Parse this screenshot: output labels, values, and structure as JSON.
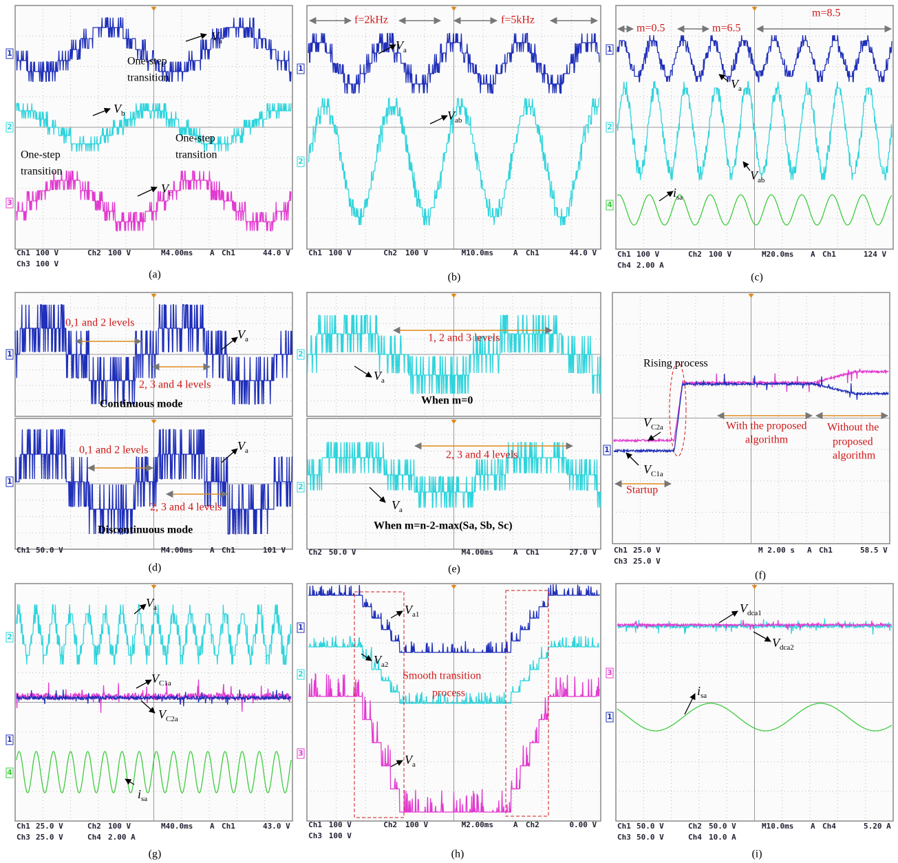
{
  "panels": [
    {
      "caption": "(a)",
      "channels": [
        "1",
        "2",
        "3"
      ],
      "labels": [
        {
          "text": "V",
          "sub": "a"
        },
        "One-step",
        "transition",
        {
          "text": "V",
          "sub": "b"
        },
        "One-step",
        "transition",
        "One-step",
        "transition",
        {
          "text": "V",
          "sub": "c"
        }
      ],
      "status": [
        [
          "Ch1",
          "100 V",
          "Ch2",
          "100 V",
          "M4.00ms",
          "A",
          "Ch1",
          "44.0 V"
        ],
        [
          "Ch3",
          "100 V"
        ]
      ]
    },
    {
      "caption": "(b)",
      "channels": [
        "1",
        "2"
      ],
      "labels": [
        "f=2kHz",
        "f=5kHz",
        {
          "text": "V",
          "sub": "a"
        },
        {
          "text": "V",
          "sub": "ab"
        }
      ],
      "status": [
        [
          "Ch1",
          "100 V",
          "Ch2",
          "100 V",
          "M10.0ms",
          "A",
          "Ch1",
          "44.0 V"
        ]
      ]
    },
    {
      "caption": "(c)",
      "channels": [
        "1",
        "2",
        "4"
      ],
      "labels": [
        "m=0.5",
        "m=6.5",
        "m=8.5",
        {
          "text": "V",
          "sub": "a"
        },
        {
          "text": "V",
          "sub": "ab"
        },
        {
          "text": "i",
          "sub": "sa"
        }
      ],
      "status": [
        [
          "Ch1",
          "100 V",
          "Ch2",
          "100 V",
          "M20.0ms",
          "A",
          "Ch1",
          "124 V"
        ],
        [
          "Ch4",
          "2.00 A"
        ]
      ]
    },
    {
      "caption": "(d)",
      "channels": [
        "1",
        "1"
      ],
      "labels": [
        "0,1 and 2 levels",
        {
          "text": "V",
          "sub": "a"
        },
        "2, 3 and 4 levels",
        "Continuous mode",
        "0,1 and 2 levels",
        {
          "text": "V",
          "sub": "a"
        },
        "2, 3 and 4 levels",
        "Discontinuous mode"
      ],
      "status": [
        [
          "Ch1",
          "50.0 V",
          "M4.00ms",
          "A",
          "Ch1",
          "101 V"
        ]
      ]
    },
    {
      "caption": "(e)",
      "channels": [
        "2",
        "2"
      ],
      "labels": [
        "1, 2 and 3 levels",
        {
          "text": "V",
          "sub": "a"
        },
        "When m=0",
        "2, 3 and 4 levels",
        {
          "text": "V",
          "sub": "a"
        },
        "When m=n-2-max(Sa, Sb, Sc)"
      ],
      "status": [
        [
          "Ch2",
          "50.0 V",
          "M4.00ms",
          "A",
          "Ch1",
          "27.0 V"
        ]
      ]
    },
    {
      "caption": "(f)",
      "channels": [
        "1"
      ],
      "labels": [
        "Rising process",
        {
          "text": "V",
          "sub": "C2a"
        },
        {
          "text": "V",
          "sub": "C1a"
        },
        "Startup",
        "With the proposed",
        "algorithm",
        "Without the",
        "proposed",
        "algorithm"
      ],
      "status": [
        [
          "Ch1",
          "25.0 V",
          "M 2.00 s",
          "A",
          "Ch1",
          "58.5 V"
        ],
        [
          "Ch3",
          "25.0 V"
        ]
      ]
    },
    {
      "caption": "(g)",
      "channels": [
        "2",
        "1",
        "4"
      ],
      "labels": [
        {
          "text": "V",
          "sub": "a"
        },
        {
          "text": "V",
          "sub": "C1a"
        },
        {
          "text": "V",
          "sub": "C2a"
        },
        {
          "text": "i",
          "sub": "sa"
        }
      ],
      "status": [
        [
          "Ch1",
          "25.0 V",
          "Ch2",
          "100 V",
          "M40.0ms",
          "A",
          "Ch1",
          "43.0 V"
        ],
        [
          "Ch3",
          "25.0 V",
          "Ch4",
          "2.00 A"
        ]
      ]
    },
    {
      "caption": "(h)",
      "channels": [
        "1",
        "2",
        "3"
      ],
      "labels": [
        {
          "text": "V",
          "sub": "a1"
        },
        {
          "text": "V",
          "sub": "a2"
        },
        "Smooth transition",
        "process",
        {
          "text": "V",
          "sub": "a"
        }
      ],
      "status": [
        [
          "Ch1",
          "100 V",
          "Ch2",
          "100 V",
          "M2.00ms",
          "A",
          "Ch2",
          "0.00 V"
        ],
        [
          "Ch3",
          "100 V"
        ]
      ]
    },
    {
      "caption": "(i)",
      "channels": [
        "3",
        "1"
      ],
      "labels": [
        {
          "text": "V",
          "sub": "dca1"
        },
        {
          "text": "V",
          "sub": "dca2"
        },
        {
          "text": "i",
          "sub": "sa"
        }
      ],
      "status": [
        [
          "Ch1",
          "50.0 V",
          "Ch2",
          "50.0 V",
          "M10.0ms",
          "A",
          "Ch4",
          "5.20 A"
        ],
        [
          "Ch3",
          "50.0 V",
          "Ch4",
          "10.0 A"
        ]
      ]
    }
  ]
}
